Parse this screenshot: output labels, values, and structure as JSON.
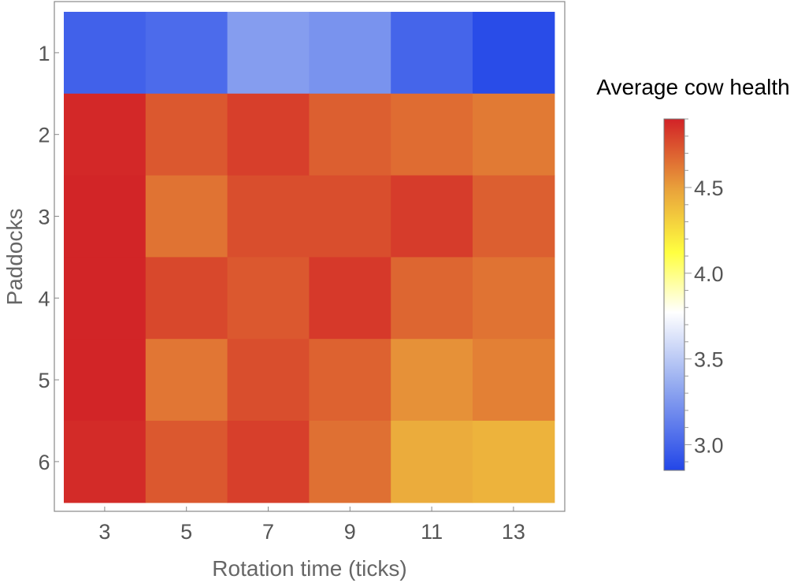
{
  "chart_data": {
    "type": "heatmap",
    "title": "",
    "xlabel": "Rotation time (ticks)",
    "ylabel": "Paddocks",
    "x_categories": [
      "3",
      "5",
      "7",
      "9",
      "11",
      "13"
    ],
    "y_categories": [
      "1",
      "2",
      "3",
      "4",
      "5",
      "6"
    ],
    "values": [
      [
        2.98,
        3.03,
        3.27,
        3.22,
        3.0,
        2.88
      ],
      [
        4.88,
        4.72,
        4.8,
        4.7,
        4.66,
        4.62
      ],
      [
        4.89,
        4.64,
        4.75,
        4.75,
        4.81,
        4.7
      ],
      [
        4.89,
        4.77,
        4.72,
        4.82,
        4.68,
        4.64
      ],
      [
        4.89,
        4.63,
        4.75,
        4.69,
        4.55,
        4.6
      ],
      [
        4.87,
        4.72,
        4.8,
        4.65,
        4.46,
        4.43
      ]
    ],
    "colorbar": {
      "title": "Average cow health",
      "range": [
        2.85,
        4.9
      ],
      "ticks": [
        "3.0",
        "3.5",
        "4.0",
        "4.5"
      ],
      "colormap": "blue-white-yellow-red",
      "colors": [
        "#2246e8",
        "#ffffff",
        "#ffff40",
        "#d22227"
      ]
    },
    "grid": false,
    "legend_position": "right"
  }
}
